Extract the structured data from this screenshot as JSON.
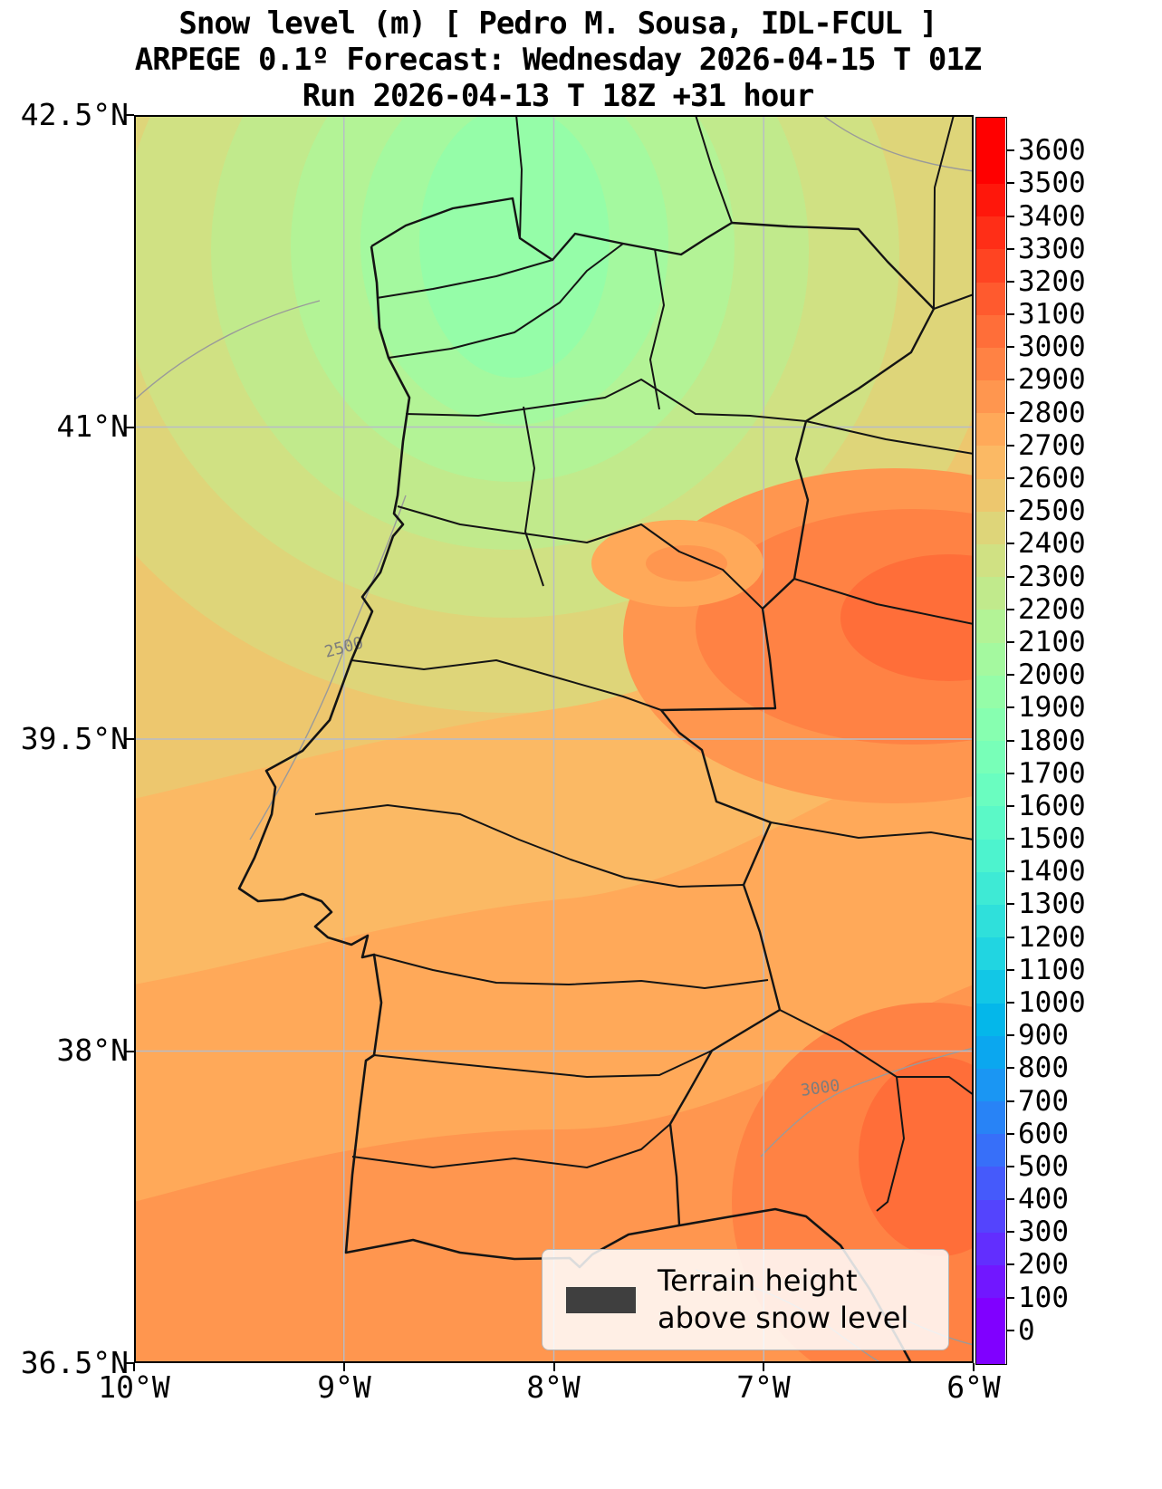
{
  "figure": {
    "title_line1": "Snow level (m) [ Pedro M. Sousa, IDL-FCUL ]",
    "title_line2": "ARPEGE 0.1º Forecast: Wednesday 2026-04-15 T 01Z",
    "title_line3": "Run 2026-04-13 T 18Z +31 hour"
  },
  "axes": {
    "y_tick_labels": [
      "42.5°N",
      "41°N",
      "39.5°N",
      "38°N",
      "36.5°N"
    ],
    "x_tick_labels": [
      "10°W",
      "9°W",
      "8°W",
      "7°W",
      "6°W"
    ]
  },
  "colorbar": {
    "unit": "m",
    "tick_labels_top_to_bottom": [
      "3600",
      "3500",
      "3400",
      "3300",
      "3200",
      "3100",
      "3000",
      "2900",
      "2800",
      "2700",
      "2600",
      "2500",
      "2400",
      "2300",
      "2200",
      "2100",
      "2000",
      "1900",
      "1800",
      "1700",
      "1600",
      "1500",
      "1400",
      "1300",
      "1200",
      "1100",
      "1000",
      "900",
      "800",
      "700",
      "600",
      "500",
      "400",
      "300",
      "200",
      "100",
      "0"
    ],
    "band_colors_bottom_to_top": [
      "#8000FF",
      "#8000FF",
      "#7117FF",
      "#622EFE",
      "#5444FD",
      "#455AFB",
      "#376FF9",
      "#2883F6",
      "#1A96F3",
      "#0BA7EF",
      "#04B7EA",
      "#12C7E6",
      "#21D5E1",
      "#2FE0DB",
      "#3EEAD5",
      "#4DF3CE",
      "#5BF9C7",
      "#6AFDC0",
      "#78FFB8",
      "#87FFB0",
      "#95FDA8",
      "#A4F99F",
      "#B3F396",
      "#C1EA8C",
      "#D0E183",
      "#DED579",
      "#EDC76E",
      "#FBB964",
      "#FFA959",
      "#FF964F",
      "#FF8244",
      "#FF6E39",
      "#FF5A2E",
      "#FF4422",
      "#FF2E17",
      "#FF170B",
      "#FF0000",
      "#FF0000"
    ]
  },
  "map": {
    "contour_labels": [
      {
        "text": "2500"
      },
      {
        "text": "3000"
      }
    ]
  },
  "legend": {
    "line1": "Terrain height",
    "line2": "above snow level",
    "patch_color": "#3f3f3f"
  },
  "chart_data": {
    "type": "heatmap",
    "subtype": "filled-contour-forecast-map",
    "title": "Snow level (m) [ Pedro M. Sousa, IDL-FCUL ]",
    "model": "ARPEGE 0.1º",
    "valid_time": "Wednesday 2026-04-15 T 01Z",
    "run_time": "2026-04-13 T 18Z",
    "lead_time_hours": 31,
    "variable": "snow level",
    "unit": "m",
    "x_ticks": [
      "10°W",
      "9°W",
      "8°W",
      "7°W",
      "6°W"
    ],
    "y_ticks": [
      "42.5°N",
      "41°N",
      "39.5°N",
      "38°N",
      "36.5°N"
    ],
    "lon_range_deg": [
      -10,
      -6
    ],
    "lat_range_deg": [
      36.5,
      42.5
    ],
    "colorbar_range_m": [
      0,
      3600
    ],
    "colorbar_step_m": 100,
    "colormap": "rainbow",
    "grid": true,
    "labeled_contours_m": [
      2500,
      3000
    ],
    "approx_field_values_m": [
      {
        "area": "NW Portugal coast (Minho / Douro Litoral)",
        "value": 1950
      },
      {
        "area": "ring around NW minimum",
        "value": 2150
      },
      {
        "area": "NW Atlantic corner of domain",
        "value": 2450
      },
      {
        "area": "NE border (Trás-os-Montes / Zamora)",
        "value": 2450
      },
      {
        "area": "east-central Spain strip (Salamanca)",
        "value": 2350
      },
      {
        "area": "central Portugal (Beiras)",
        "value": 2600
      },
      {
        "area": "Serra da Estrela patch",
        "value": 2850
      },
      {
        "area": "eastern dark patch (Ávila / Cáceres)",
        "value": 3050
      },
      {
        "area": "Lisbon / Tejo valley",
        "value": 2700
      },
      {
        "area": "Alentejo",
        "value": 2850
      },
      {
        "area": "Algarve and SE corner (Andalucía)",
        "value": 3000
      }
    ],
    "legend_note": "Terrain height above snow level"
  }
}
